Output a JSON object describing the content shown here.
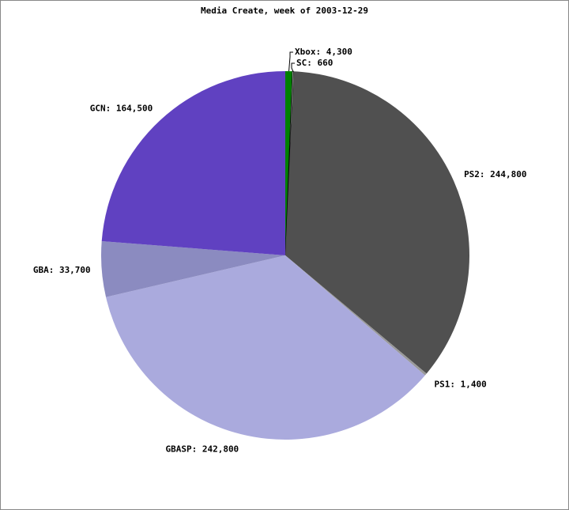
{
  "chart_data": {
    "type": "pie",
    "title": "Media Create, week of 2003-12-29",
    "values": [
      4300,
      660,
      244800,
      1400,
      242800,
      33700,
      164500
    ],
    "value_labels": [
      "Xbox: 4,300",
      "SC: 660",
      "PS2: 244,800",
      "PS1: 1,400",
      "GBASP: 242,800",
      "GBA: 33,700",
      "GCN: 164,500"
    ],
    "colors": [
      "#008000",
      "#ffffff",
      "#505050",
      "#999999",
      "#aaaadd",
      "#8b8bc0",
      "#6041c1"
    ]
  }
}
